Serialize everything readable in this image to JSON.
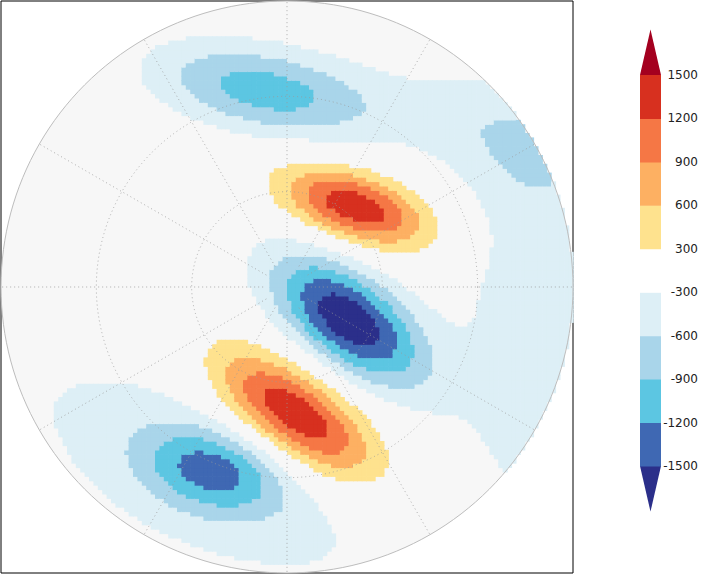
{
  "chart_data": {
    "type": "contour_map",
    "xlim": [
      -1,
      1
    ],
    "ylim": [
      -1,
      1
    ],
    "tick_labels": false,
    "anomalies": [
      {
        "value": 1450,
        "from": [
          -0.077,
          0.381
        ],
        "to": [
          0.552,
          0.182
        ],
        "width": 0.147
      },
      {
        "value": -1750,
        "from": [
          -0.112,
          0.136
        ],
        "to": [
          0.542,
          -0.36
        ],
        "width": 0.21
      },
      {
        "value": 1600,
        "from": [
          -0.322,
          -0.203
        ],
        "to": [
          0.378,
          -0.692
        ],
        "width": 0.19
      },
      {
        "value": -1050,
        "from": [
          -0.514,
          0.776
        ],
        "to": [
          0.36,
          0.601
        ],
        "width": 0.17
      },
      {
        "value": -1000,
        "from": [
          -0.531,
          -0.57
        ],
        "to": [
          0.01,
          -0.71
        ],
        "width": 0.157
      },
      {
        "value": -450,
        "from": [
          0.885,
          0.549
        ],
        "to": [
          0.815,
          -0.605
        ],
        "width": 0.175
      },
      {
        "value": -400,
        "from": [
          0.5,
          0.619
        ],
        "to": [
          0.955,
          0.444
        ],
        "width": 0.1
      },
      {
        "value": -400,
        "from": [
          -0.794,
          -0.395
        ],
        "to": [
          0.15,
          -0.902
        ],
        "width": 0.2
      }
    ],
    "color_bar": {
      "ticks": [
        -1500,
        -1200,
        -900,
        -600,
        -300,
        300,
        600,
        900,
        1200,
        1500
      ],
      "colors": [
        "#2b2f8a",
        "#3f68b3",
        "#5cc6e2",
        "#a9d5ea",
        "#ddeff6",
        "#ffffff",
        "#fee28e",
        "#fdb062",
        "#f57745",
        "#d7301f",
        "#a4001f"
      ]
    }
  }
}
